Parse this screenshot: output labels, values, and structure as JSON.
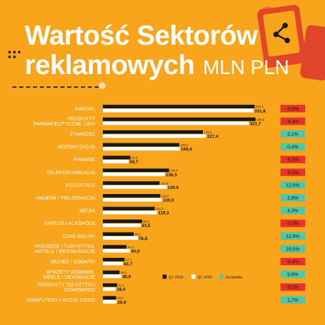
{
  "header": {
    "title_line1": "Wartość Sektorów",
    "title_line2": "reklamowych",
    "title_unit": "MLN PLN"
  },
  "colors": {
    "background": "#f9a51b",
    "bar_2018": "#1a1a1a",
    "bar_2019": "#ffffff",
    "positive": "#4fc6a7",
    "negative": "#e8332a",
    "phone": "#e0462a"
  },
  "icons": [
    "share-icon",
    "smartphone-icon"
  ],
  "chart_data": {
    "type": "bar",
    "orientation": "horizontal",
    "categories": [
      [
        "HANDEL"
      ],
      [
        "PRODUKTY",
        "FARMACEUTYCZNE, LEKI"
      ],
      [
        "ŻYWNOŚĆ"
      ],
      [
        "MOTORYZACJA"
      ],
      [
        "FINANSE"
      ],
      [
        "TELEKOMUNIKACJA"
      ],
      [
        "POZOSTAŁE"
      ],
      [
        "HIGIENA I PIELĘGNACJA"
      ],
      [
        "MEDIA"
      ],
      [
        "NAPOJE I ALKOHOLE"
      ],
      [
        "CZAS WOLNY"
      ],
      [
        "PODRÓŻE I TURYSTYKA,",
        "HOTELE I RESTAURACJE"
      ],
      [
        "ODZIEŻ I DODATKI"
      ],
      [
        "SPRZĘTY DOMOWE,",
        "MEBLE I DEKORACJE"
      ],
      [
        "PRODUKTY DO UŻYTKU",
        "DOMOWEGO"
      ],
      [
        "KOMPUTERY I AUDIO VIDEO"
      ]
    ],
    "series": [
      {
        "name": "Q1 2018",
        "values": [
          "334,6",
          "336,5",
          "220,6",
          "168,5",
          "60,8",
          "145,9",
          "124,9",
          "126,6",
          "114,3",
          "86,5",
          "68,1",
          "52,0",
          "47,7",
          "36,9",
          "31,4",
          "29,4"
        ]
      },
      {
        "name": "Q1 2019",
        "values": [
          "331,8",
          "321,7",
          "227,4",
          "169,4",
          "56,7",
          "136,5",
          "140,6",
          "130,0",
          "119,3",
          "83,5",
          "76,8",
          "60,0",
          "43,7",
          "40,6",
          "28,4",
          "29,9"
        ]
      },
      {
        "name": "Dynamika",
        "values": [
          "-0,8%",
          "-4,4%",
          "3,1%",
          "0,4%",
          "-6,8%",
          "-6,5%",
          "12,6%",
          "2,8%",
          "4,3%",
          "-3,5%",
          "12,9%",
          "15,5%",
          "-8,4%",
          "9,8%",
          "-9,5%",
          "1,7%"
        ]
      }
    ],
    "xlim": [
      0,
      340
    ]
  }
}
